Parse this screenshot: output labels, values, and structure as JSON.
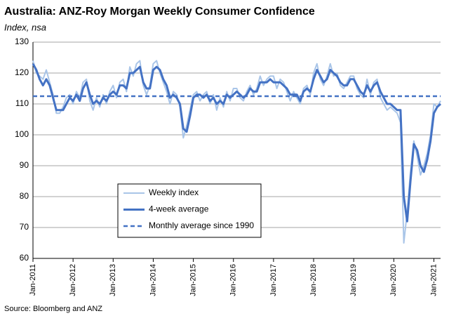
{
  "chart_data": {
    "type": "line",
    "title": "Australia: ANZ-Roy Morgan Weekly Consumer Confidence",
    "subtitle": "Index, nsa",
    "source": "Source: Bloomberg and ANZ",
    "x": [
      "2011-01",
      "2011-02",
      "2011-03",
      "2011-04",
      "2011-05",
      "2011-06",
      "2011-07",
      "2011-08",
      "2011-09",
      "2011-10",
      "2011-11",
      "2011-12",
      "2012-01",
      "2012-02",
      "2012-03",
      "2012-04",
      "2012-05",
      "2012-06",
      "2012-07",
      "2012-08",
      "2012-09",
      "2012-10",
      "2012-11",
      "2012-12",
      "2013-01",
      "2013-02",
      "2013-03",
      "2013-04",
      "2013-05",
      "2013-06",
      "2013-07",
      "2013-08",
      "2013-09",
      "2013-10",
      "2013-11",
      "2013-12",
      "2014-01",
      "2014-02",
      "2014-03",
      "2014-04",
      "2014-05",
      "2014-06",
      "2014-07",
      "2014-08",
      "2014-09",
      "2014-10",
      "2014-11",
      "2014-12",
      "2015-01",
      "2015-02",
      "2015-03",
      "2015-04",
      "2015-05",
      "2015-06",
      "2015-07",
      "2015-08",
      "2015-09",
      "2015-10",
      "2015-11",
      "2015-12",
      "2016-01",
      "2016-02",
      "2016-03",
      "2016-04",
      "2016-05",
      "2016-06",
      "2016-07",
      "2016-08",
      "2016-09",
      "2016-10",
      "2016-11",
      "2016-12",
      "2017-01",
      "2017-02",
      "2017-03",
      "2017-04",
      "2017-05",
      "2017-06",
      "2017-07",
      "2017-08",
      "2017-09",
      "2017-10",
      "2017-11",
      "2017-12",
      "2018-01",
      "2018-02",
      "2018-03",
      "2018-04",
      "2018-05",
      "2018-06",
      "2018-07",
      "2018-08",
      "2018-09",
      "2018-10",
      "2018-11",
      "2018-12",
      "2019-01",
      "2019-02",
      "2019-03",
      "2019-04",
      "2019-05",
      "2019-06",
      "2019-07",
      "2019-08",
      "2019-09",
      "2019-10",
      "2019-11",
      "2019-12",
      "2020-01",
      "2020-02",
      "2020-03",
      "2020-04",
      "2020-05",
      "2020-06",
      "2020-07",
      "2020-08",
      "2020-09",
      "2020-10",
      "2020-11",
      "2020-12",
      "2021-01",
      "2021-02",
      "2021-03"
    ],
    "series": [
      {
        "name": "Weekly index",
        "color": "#a9c5e8",
        "width": 2,
        "values": [
          124,
          120,
          119,
          118,
          121,
          117,
          113,
          107,
          107,
          109,
          112,
          113,
          110,
          114,
          112,
          117,
          118,
          111,
          108,
          112,
          109,
          113,
          110,
          114,
          116,
          112,
          117,
          118,
          114,
          122,
          119,
          123,
          124,
          116,
          113,
          116,
          123,
          124,
          120,
          117,
          114,
          110,
          114,
          113,
          109,
          99,
          103,
          108,
          113,
          114,
          111,
          113,
          114,
          110,
          113,
          108,
          112,
          109,
          114,
          111,
          115,
          115,
          112,
          111,
          114,
          116,
          113,
          115,
          119,
          116,
          118,
          119,
          119,
          115,
          118,
          117,
          114,
          111,
          114,
          112,
          110,
          115,
          116,
          113,
          120,
          123,
          118,
          116,
          119,
          123,
          119,
          120,
          116,
          115,
          117,
          119,
          119,
          115,
          113,
          112,
          118,
          113,
          117,
          118,
          112,
          110,
          108,
          109,
          108,
          107,
          104,
          65,
          75,
          88,
          98,
          93,
          87,
          90,
          94,
          100,
          110,
          109,
          111
        ]
      },
      {
        "name": "4-week average",
        "color": "#4472c4",
        "width": 3,
        "values": [
          123,
          121,
          118,
          116,
          118,
          116,
          112,
          108,
          108,
          108,
          110,
          112,
          111,
          113,
          111,
          115,
          117,
          113,
          110,
          111,
          110,
          112,
          111,
          113,
          114,
          113,
          116,
          116,
          115,
          120,
          120,
          121,
          122,
          117,
          115,
          115,
          121,
          122,
          121,
          118,
          116,
          112,
          113,
          112,
          110,
          102,
          101,
          106,
          112,
          113,
          113,
          112,
          113,
          111,
          112,
          110,
          111,
          110,
          113,
          112,
          113,
          114,
          113,
          112,
          113,
          115,
          114,
          114,
          117,
          117,
          117,
          118,
          117,
          117,
          117,
          116,
          115,
          113,
          113,
          113,
          111,
          114,
          115,
          114,
          118,
          121,
          119,
          117,
          118,
          121,
          120,
          119,
          117,
          116,
          116,
          118,
          118,
          116,
          114,
          113,
          116,
          114,
          116,
          117,
          114,
          112,
          110,
          110,
          109,
          108,
          108,
          80,
          72,
          85,
          97,
          95,
          90,
          88,
          92,
          98,
          107,
          109,
          110
        ]
      }
    ],
    "reference_line": {
      "name": "Monthly average since 1990",
      "value": 112.5,
      "color": "#4472c4",
      "style": "dashed"
    },
    "xlim": [
      "2011-01",
      "2021-03"
    ],
    "xticks": [
      {
        "value": "2011-01",
        "label": "Jan-2011"
      },
      {
        "value": "2012-01",
        "label": "Jan-2012"
      },
      {
        "value": "2013-01",
        "label": "Jan-2013"
      },
      {
        "value": "2014-01",
        "label": "Jan-2014"
      },
      {
        "value": "2015-01",
        "label": "Jan-2015"
      },
      {
        "value": "2016-01",
        "label": "Jan-2016"
      },
      {
        "value": "2017-01",
        "label": "Jan-2017"
      },
      {
        "value": "2018-01",
        "label": "Jan-2018"
      },
      {
        "value": "2019-01",
        "label": "Jan-2019"
      },
      {
        "value": "2020-01",
        "label": "Jan-2020"
      },
      {
        "value": "2021-01",
        "label": "Jan-2021"
      }
    ],
    "ylim": [
      60,
      130
    ],
    "yticks": [
      60,
      70,
      80,
      90,
      100,
      110,
      120,
      130
    ],
    "grid": true
  }
}
